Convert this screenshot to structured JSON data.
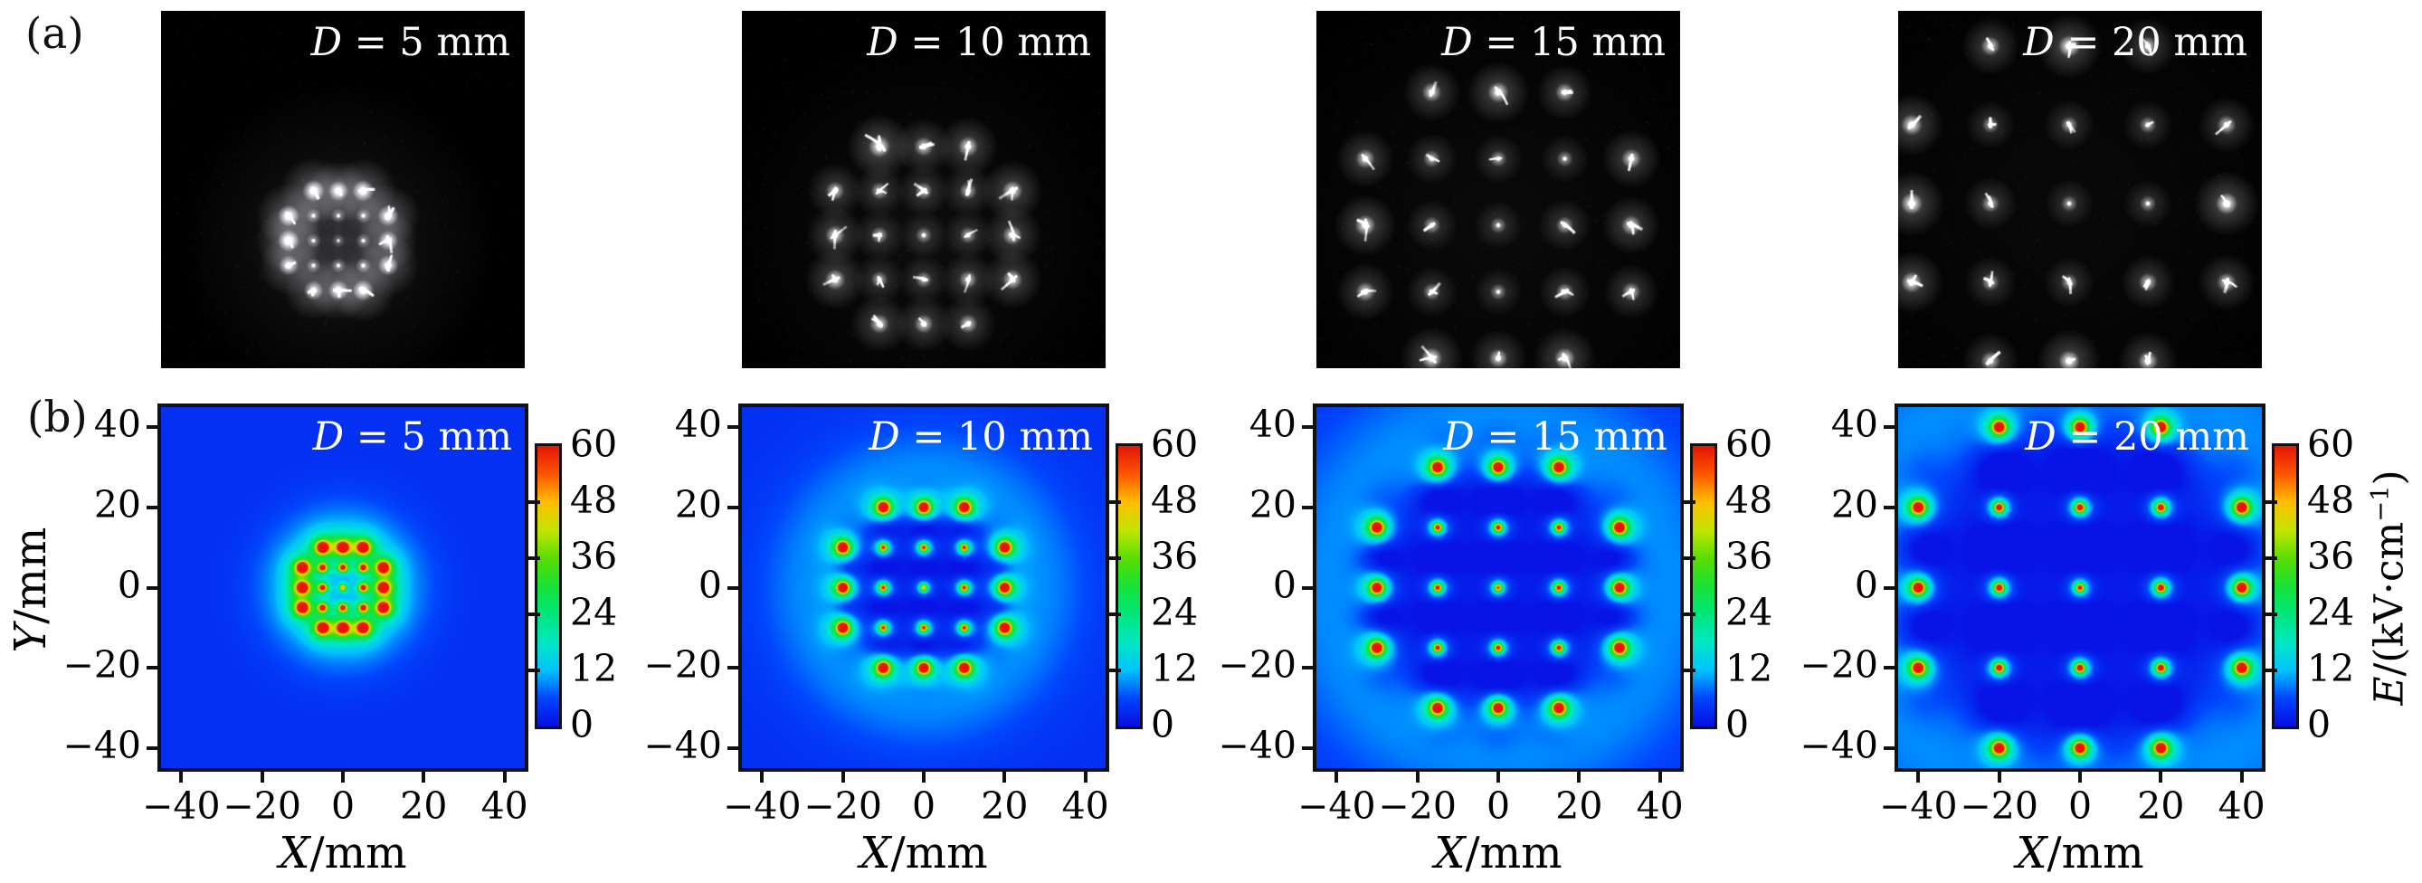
{
  "figure": {
    "row_labels": {
      "a": "(a)",
      "b": "(b)"
    },
    "axes": {
      "x_label": "X/mm",
      "x_label_parts": {
        "var": "X",
        "rest": "/mm"
      },
      "y_label": "Y/mm",
      "y_label_parts": {
        "var": "Y",
        "rest": "/mm"
      },
      "x_tick_labels": [
        "−40",
        "−20",
        "0",
        "20",
        "40"
      ],
      "y_tick_labels": [
        "40",
        "20",
        "0",
        "−20",
        "−40"
      ],
      "x_tick_values": [
        -40,
        -20,
        0,
        20,
        40
      ],
      "y_tick_values": [
        40,
        20,
        0,
        -20,
        -40
      ]
    },
    "colorbar": {
      "label": "E/(kV·cm⁻¹)",
      "label_parts": {
        "var": "E",
        "mid": "/(kV·cm",
        "sup": "−1",
        "end": ")"
      },
      "tick_labels": [
        "60",
        "48",
        "36",
        "24",
        "12",
        "0"
      ],
      "tick_values": [
        60,
        48,
        36,
        24,
        12,
        0
      ],
      "minor_tick_values": [
        48,
        36,
        24,
        12
      ],
      "range": [
        0,
        60
      ]
    },
    "panel_titles": [
      {
        "var": "D",
        "rest": " = 5 mm",
        "full": "D = 5 mm"
      },
      {
        "var": "D",
        "rest": " = 10 mm",
        "full": "D = 10 mm"
      },
      {
        "var": "D",
        "rest": " = 15 mm",
        "full": "D = 15 mm"
      },
      {
        "var": "D",
        "rest": " = 20 mm",
        "full": "D = 20 mm"
      }
    ]
  },
  "chart_data": [
    {
      "type": "scatter",
      "name": "discharge-photographs-row-a",
      "description": "ICCD photographs of plasma jet array discharge spots on black background, one panel per electrode spacing D",
      "spot_grid_units": [
        [
          -1,
          2
        ],
        [
          0,
          2
        ],
        [
          1,
          2
        ],
        [
          -2,
          1
        ],
        [
          -1,
          1
        ],
        [
          0,
          1
        ],
        [
          1,
          1
        ],
        [
          2,
          1
        ],
        [
          -2,
          0
        ],
        [
          -1,
          0
        ],
        [
          0,
          0
        ],
        [
          1,
          0
        ],
        [
          2,
          0
        ],
        [
          -2,
          -1
        ],
        [
          -1,
          -1
        ],
        [
          0,
          -1
        ],
        [
          1,
          -1
        ],
        [
          2,
          -1
        ],
        [
          -1,
          -2
        ],
        [
          0,
          -2
        ],
        [
          1,
          -2
        ]
      ],
      "panels": [
        {
          "title": "D = 5 mm",
          "D_mm": 5
        },
        {
          "title": "D = 10 mm",
          "D_mm": 10
        },
        {
          "title": "D = 15 mm",
          "D_mm": 15
        },
        {
          "title": "D = 20 mm",
          "D_mm": 20
        }
      ]
    },
    {
      "type": "heatmap",
      "name": "electric-field-maps-row-b",
      "xlabel": "X/mm",
      "ylabel": "Y/mm",
      "colorbar_label": "E/(kV·cm⁻¹)",
      "x_range": [
        -45,
        45
      ],
      "y_range": [
        -45,
        45
      ],
      "value_range": [
        0,
        60
      ],
      "x_ticks": [
        -40,
        -20,
        0,
        20,
        40
      ],
      "y_ticks": [
        40,
        20,
        0,
        -20,
        -40
      ],
      "colorbar_ticks": [
        0,
        12,
        24,
        36,
        48,
        60
      ],
      "colormap": "jet",
      "grid": false,
      "electrode_grid_units": [
        [
          -1,
          2
        ],
        [
          0,
          2
        ],
        [
          1,
          2
        ],
        [
          -2,
          1
        ],
        [
          -1,
          1
        ],
        [
          0,
          1
        ],
        [
          1,
          1
        ],
        [
          2,
          1
        ],
        [
          -2,
          0
        ],
        [
          -1,
          0
        ],
        [
          0,
          0
        ],
        [
          1,
          0
        ],
        [
          2,
          0
        ],
        [
          -2,
          -1
        ],
        [
          -1,
          -1
        ],
        [
          0,
          -1
        ],
        [
          1,
          -1
        ],
        [
          2,
          -1
        ],
        [
          -1,
          -2
        ],
        [
          0,
          -2
        ],
        [
          1,
          -2
        ]
      ],
      "panels": [
        {
          "title": "D = 5 mm",
          "D_mm": 5,
          "peak_value": 60
        },
        {
          "title": "D = 10 mm",
          "D_mm": 10,
          "peak_value": 60
        },
        {
          "title": "D = 15 mm",
          "D_mm": 15,
          "peak_value": 60
        },
        {
          "title": "D = 20 mm",
          "D_mm": 20,
          "peak_value": 60
        }
      ]
    }
  ],
  "colors": {
    "background": "#ffffff",
    "frame": "#111111",
    "text": "#000000",
    "panel_title_text": "#ffffff",
    "photo_background": "#000000",
    "colormap_stops_value_rgb": [
      [
        0,
        8,
        16,
        228
      ],
      [
        6,
        0,
        70,
        252
      ],
      [
        12,
        0,
        195,
        255
      ],
      [
        18,
        0,
        232,
        196
      ],
      [
        24,
        0,
        230,
        124
      ],
      [
        30,
        24,
        226,
        56
      ],
      [
        36,
        88,
        222,
        0
      ],
      [
        42,
        196,
        230,
        0
      ],
      [
        48,
        255,
        192,
        0
      ],
      [
        54,
        255,
        88,
        0
      ],
      [
        60,
        230,
        22,
        0
      ]
    ]
  }
}
